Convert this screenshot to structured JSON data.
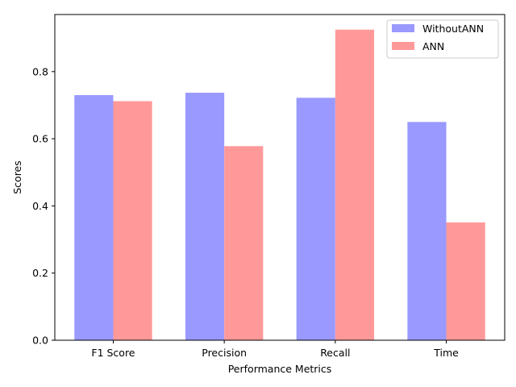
{
  "chart_data": {
    "type": "bar",
    "title": "",
    "xlabel": "Performance Metrics",
    "ylabel": "Scores",
    "categories": [
      "F1 Score",
      "Precision",
      "Recall",
      "Time"
    ],
    "series": [
      {
        "name": "WithoutANN",
        "color": "#9999ff",
        "values": [
          0.73,
          0.737,
          0.722,
          0.65
        ]
      },
      {
        "name": "ANN",
        "color": "#ff9999",
        "values": [
          0.712,
          0.578,
          0.925,
          0.351
        ]
      }
    ],
    "ylim": [
      0,
      0.97
    ],
    "yticks": [
      0.0,
      0.2,
      0.4,
      0.6,
      0.8
    ],
    "ytick_labels": [
      "0.0",
      "0.2",
      "0.4",
      "0.6",
      "0.8"
    ],
    "grid": false,
    "legend_position": "top-right"
  }
}
